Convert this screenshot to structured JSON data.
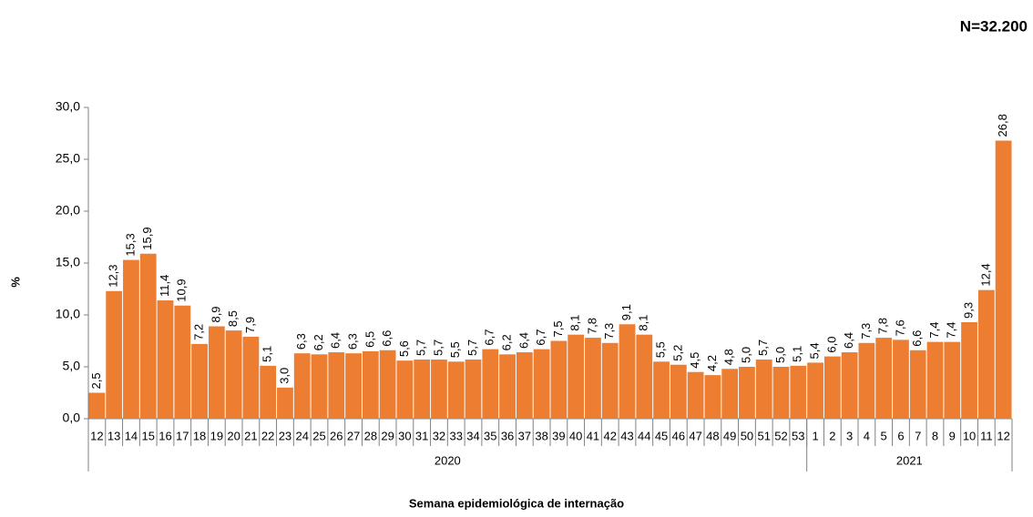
{
  "chart_data": {
    "type": "bar",
    "color": "#ed7d31",
    "note": "N=32.200",
    "y_label": "%",
    "x_label": "Semana epidemiológica de internação",
    "ylim": [
      0,
      30
    ],
    "yticks": [
      {
        "value": 0,
        "label": "0,0"
      },
      {
        "value": 5,
        "label": "5,0"
      },
      {
        "value": 10,
        "label": "10,0"
      },
      {
        "value": 15,
        "label": "15,0"
      },
      {
        "value": 20,
        "label": "20,0"
      },
      {
        "value": 25,
        "label": "25,0"
      },
      {
        "value": 30,
        "label": "30,0"
      }
    ],
    "groups": [
      {
        "label": "2020",
        "categories": [
          "12",
          "13",
          "14",
          "15",
          "16",
          "17",
          "18",
          "19",
          "20",
          "21",
          "22",
          "23",
          "24",
          "25",
          "26",
          "27",
          "28",
          "29",
          "30",
          "31",
          "32",
          "33",
          "34",
          "35",
          "36",
          "37",
          "38",
          "39",
          "40",
          "41",
          "42",
          "43",
          "44",
          "45",
          "46",
          "47",
          "48",
          "49",
          "50",
          "51",
          "52",
          "53"
        ],
        "values": [
          2.5,
          12.3,
          15.3,
          15.9,
          11.4,
          10.9,
          7.2,
          8.9,
          8.5,
          7.9,
          5.1,
          3.0,
          6.3,
          6.2,
          6.4,
          6.3,
          6.5,
          6.6,
          5.6,
          5.7,
          5.7,
          5.5,
          5.7,
          6.7,
          6.2,
          6.4,
          6.7,
          7.5,
          8.1,
          7.8,
          7.3,
          9.1,
          8.1,
          5.5,
          5.2,
          4.5,
          4.2,
          4.8,
          5.0,
          5.7,
          5.0,
          5.1
        ],
        "value_labels": [
          "2,5",
          "12,3",
          "15,3",
          "15,9",
          "11,4",
          "10,9",
          "7,2",
          "8,9",
          "8,5",
          "7,9",
          "5,1",
          "3,0",
          "6,3",
          "6,2",
          "6,4",
          "6,3",
          "6,5",
          "6,6",
          "5,6",
          "5,7",
          "5,7",
          "5,5",
          "5,7",
          "6,7",
          "6,2",
          "6,4",
          "6,7",
          "7,5",
          "8,1",
          "7,8",
          "7,3",
          "9,1",
          "8,1",
          "5,5",
          "5,2",
          "4,5",
          "4,2",
          "4,8",
          "5,0",
          "5,7",
          "5,0",
          "5,1"
        ]
      },
      {
        "label": "2021",
        "categories": [
          "1",
          "2",
          "3",
          "4",
          "5",
          "6",
          "7",
          "8",
          "9",
          "10",
          "11",
          "12"
        ],
        "values": [
          5.4,
          6.0,
          6.4,
          7.3,
          7.8,
          7.6,
          6.6,
          7.4,
          7.4,
          9.3,
          12.4,
          26.8
        ],
        "value_labels": [
          "5,4",
          "6,0",
          "6,4",
          "7,3",
          "7,8",
          "7,6",
          "6,6",
          "7,4",
          "7,4",
          "9,3",
          "12,4",
          "26,8"
        ]
      }
    ]
  }
}
